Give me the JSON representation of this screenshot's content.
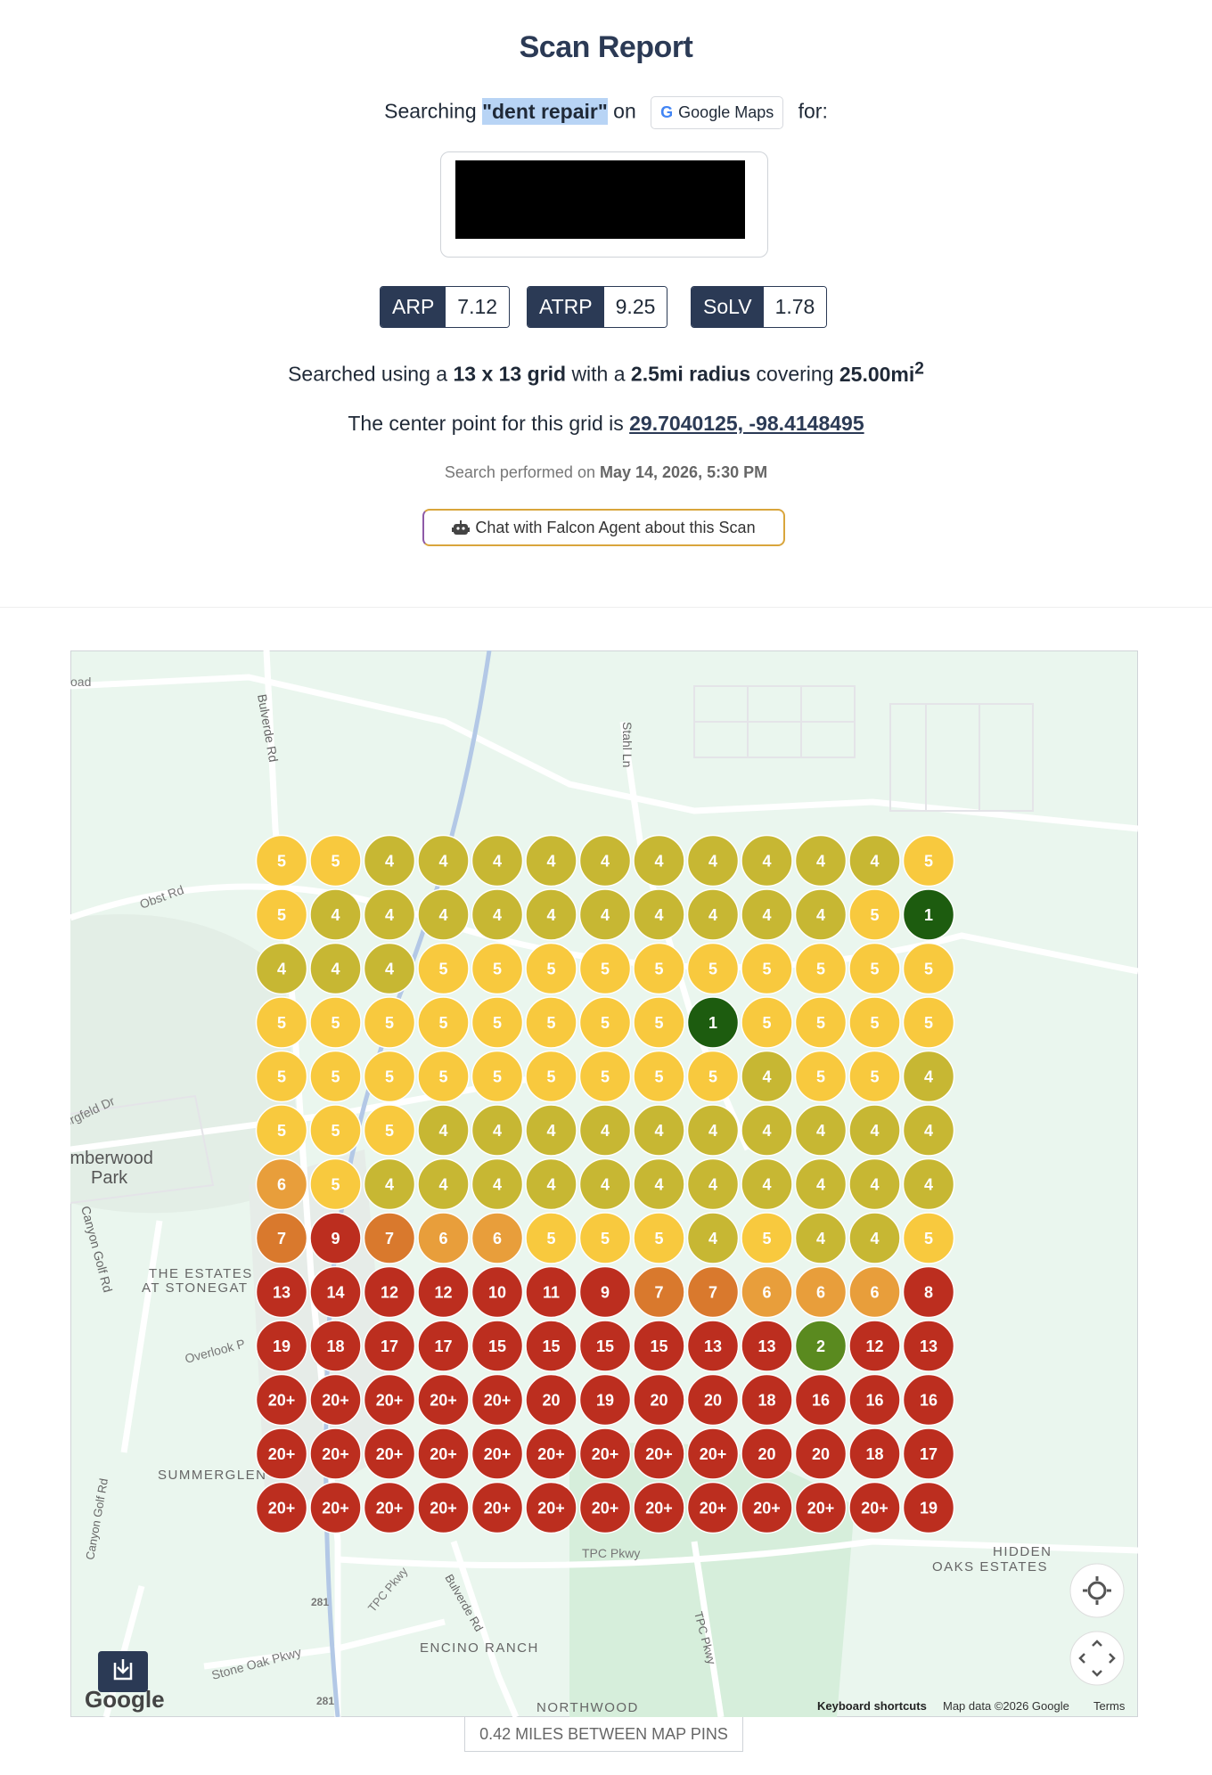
{
  "header": {
    "title": "Scan Report",
    "searching": "Searching",
    "keyword": "\"dent repair\"",
    "on": "on",
    "platform_icon": "G",
    "platform": "Google Maps",
    "for": "for:"
  },
  "metrics": [
    {
      "label": "ARP",
      "value": "7.12"
    },
    {
      "label": "ATRP",
      "value": "9.25"
    },
    {
      "label": "SoLV",
      "value": "1.78"
    }
  ],
  "summary": {
    "prefix": "Searched using a",
    "grid": "13 x 13 grid",
    "with": "with a",
    "radius": "2.5mi radius",
    "covering": "covering",
    "area": "25.00mi",
    "area_exp": "2"
  },
  "center": {
    "prefix": "The center point for this grid is",
    "coords": "29.7040125, -98.4148495"
  },
  "performed": {
    "prefix": "Search performed on",
    "date": "May 14, 2026, 5:30 PM"
  },
  "chat_button": "Chat with Falcon Agent about this Scan",
  "map": {
    "ranks": [
      [
        "5",
        "5",
        "4",
        "4",
        "4",
        "4",
        "4",
        "4",
        "4",
        "4",
        "4",
        "4",
        "5"
      ],
      [
        "5",
        "4",
        "4",
        "4",
        "4",
        "4",
        "4",
        "4",
        "4",
        "4",
        "4",
        "5",
        "1"
      ],
      [
        "4",
        "4",
        "4",
        "5",
        "5",
        "5",
        "5",
        "5",
        "5",
        "5",
        "5",
        "5",
        "5"
      ],
      [
        "5",
        "5",
        "5",
        "5",
        "5",
        "5",
        "5",
        "5",
        "1",
        "5",
        "5",
        "5",
        "5"
      ],
      [
        "5",
        "5",
        "5",
        "5",
        "5",
        "5",
        "5",
        "5",
        "5",
        "4",
        "5",
        "5",
        "4"
      ],
      [
        "5",
        "5",
        "5",
        "4",
        "4",
        "4",
        "4",
        "4",
        "4",
        "4",
        "4",
        "4",
        "4"
      ],
      [
        "6",
        "5",
        "4",
        "4",
        "4",
        "4",
        "4",
        "4",
        "4",
        "4",
        "4",
        "4",
        "4"
      ],
      [
        "7",
        "9",
        "7",
        "6",
        "6",
        "5",
        "5",
        "5",
        "4",
        "5",
        "4",
        "4",
        "5"
      ],
      [
        "13",
        "14",
        "12",
        "12",
        "10",
        "11",
        "9",
        "7",
        "7",
        "6",
        "6",
        "6",
        "8"
      ],
      [
        "19",
        "18",
        "17",
        "17",
        "15",
        "15",
        "15",
        "15",
        "13",
        "13",
        "2",
        "12",
        "13"
      ],
      [
        "20+",
        "20+",
        "20+",
        "20+",
        "20+",
        "20",
        "19",
        "20",
        "20",
        "18",
        "16",
        "16",
        "16"
      ],
      [
        "20+",
        "20+",
        "20+",
        "20+",
        "20+",
        "20+",
        "20+",
        "20+",
        "20+",
        "20",
        "20",
        "18",
        "17"
      ],
      [
        "20+",
        "20+",
        "20+",
        "20+",
        "20+",
        "20+",
        "20+",
        "20+",
        "20+",
        "20+",
        "20+",
        "20+",
        "19"
      ]
    ],
    "labels": [
      "oad",
      "Bulverde Rd",
      "Stahl Ln",
      "Obst Rd",
      "orgfeld Dr",
      "imberwood",
      "Park",
      "Canyon Golf Rd",
      "THE ESTATES",
      "AT STONEGAT",
      "Overlook P",
      "SUMMERGLEN",
      "Canyon Golf Rd",
      "TPC Pkwy",
      "HIDDEN",
      "OAKS ESTATES",
      "281",
      "Bulverde Rd",
      "TPC Pkwy",
      "ENCINO RANCH",
      "Stone Oak Pkwy",
      "281",
      "NORTHWOOD",
      "TPC Pkwy"
    ],
    "logo": "Google",
    "shortcuts": "Keyboard shortcuts",
    "attribution": "Map data ©2026 Google",
    "terms": "Terms"
  },
  "footer": "0.42 MILES BETWEEN MAP PINS"
}
